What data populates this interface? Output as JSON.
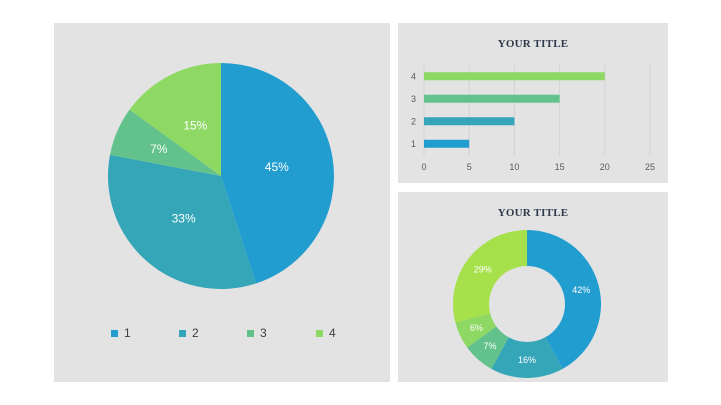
{
  "chart_data": [
    {
      "type": "pie",
      "categories": [
        "1",
        "2",
        "3",
        "4"
      ],
      "values": [
        45,
        33,
        7,
        15
      ],
      "data_labels": [
        "45%",
        "33%",
        "7%",
        "15%"
      ],
      "colors": [
        "#229dd0",
        "#35a6b8",
        "#63c28b",
        "#8ed864"
      ],
      "legend": "bottom",
      "title": ""
    },
    {
      "type": "bar",
      "orientation": "horizontal",
      "title": "YOUR TITLE",
      "categories": [
        "1",
        "2",
        "3",
        "4"
      ],
      "values": [
        5,
        10,
        15,
        20
      ],
      "colors": [
        "#229dd0",
        "#35a6b8",
        "#63c28b",
        "#8ed864"
      ],
      "xlim": [
        0,
        25
      ],
      "xticks": [
        "0",
        "5",
        "10",
        "15",
        "20",
        "25"
      ],
      "grid": true
    },
    {
      "type": "pie",
      "style": "donut",
      "title": "YOUR TITLE",
      "values": [
        42,
        16,
        7,
        6,
        29
      ],
      "data_labels": [
        "42%",
        "16%",
        "7%",
        "6%",
        "29%"
      ],
      "colors": [
        "#229dd0",
        "#35a6b8",
        "#63c28b",
        "#8ed864",
        "#a6e04a"
      ]
    }
  ]
}
